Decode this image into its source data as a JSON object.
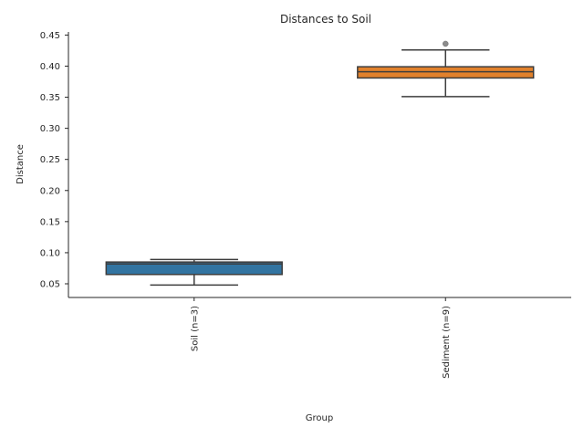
{
  "chart_data": {
    "type": "box",
    "title": "Distances to Soil",
    "xlabel": "Group",
    "ylabel": "Distance",
    "ylim": [
      0.028,
      0.455
    ],
    "yticks": [
      0.05,
      0.1,
      0.15,
      0.2,
      0.25,
      0.3,
      0.35,
      0.4,
      0.45
    ],
    "ytick_labels": [
      "0.05",
      "0.10",
      "0.15",
      "0.20",
      "0.25",
      "0.30",
      "0.35",
      "0.40",
      "0.45"
    ],
    "grid": false,
    "categories": [
      "Soil (n=3)",
      "Sediment (n=9)"
    ],
    "boxes": [
      {
        "label": "Soil (n=3)",
        "whisker_low": 0.048,
        "q1": 0.065,
        "median": 0.082,
        "q3": 0.085,
        "whisker_high": 0.089,
        "outliers": [],
        "color": "#3274a1"
      },
      {
        "label": "Sediment (n=9)",
        "whisker_low": 0.351,
        "q1": 0.381,
        "median": 0.391,
        "q3": 0.399,
        "whisker_high": 0.426,
        "outliers": [
          0.436
        ],
        "color": "#e1812c"
      }
    ]
  }
}
